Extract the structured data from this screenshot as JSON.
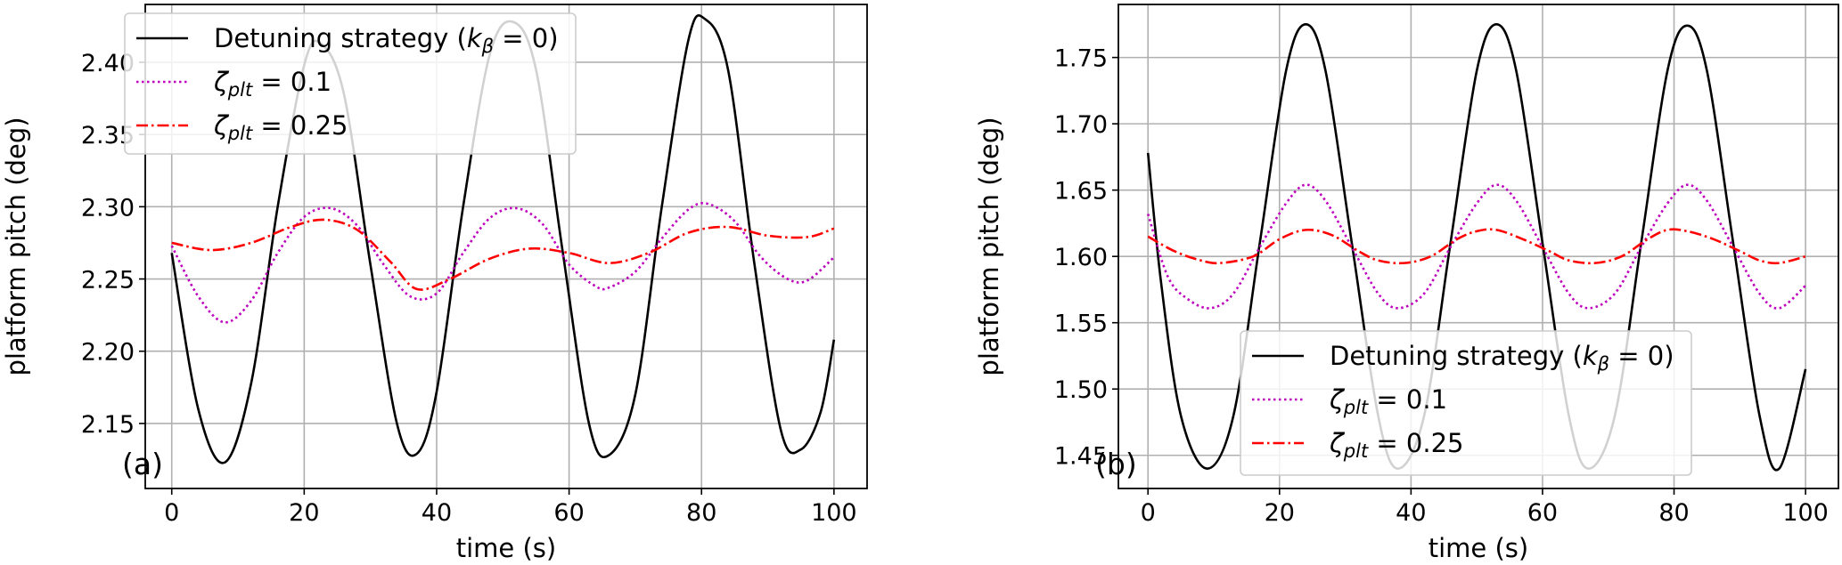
{
  "chart_data": [
    {
      "type": "line",
      "panel_label": "(a)",
      "xlabel": "time (s)",
      "ylabel": "platform pitch (deg)",
      "xlim": [
        -4,
        105
      ],
      "ylim": [
        2.105,
        2.44
      ],
      "xticks": [
        0,
        20,
        40,
        60,
        80,
        100
      ],
      "xtick_labels": [
        "0",
        "20",
        "40",
        "60",
        "80",
        "100"
      ],
      "yticks": [
        2.15,
        2.2,
        2.25,
        2.3,
        2.35,
        2.4
      ],
      "ytick_labels": [
        "2.15",
        "2.20",
        "2.25",
        "2.30",
        "2.35",
        "2.40"
      ],
      "grid": true,
      "legend_position": "top-left",
      "series": [
        {
          "name": "Detuning strategy (kβ = 0)",
          "color": "#000000",
          "style": "solid",
          "x": [
            0,
            4,
            8,
            12,
            16,
            20,
            22.5,
            26,
            30,
            34,
            37,
            40,
            44,
            48,
            51.5,
            55,
            59,
            63,
            66,
            70,
            74,
            78,
            80.5,
            84,
            88,
            92,
            95,
            98,
            100
          ],
          "y": [
            2.268,
            2.16,
            2.123,
            2.178,
            2.3,
            2.398,
            2.413,
            2.378,
            2.26,
            2.15,
            2.129,
            2.172,
            2.3,
            2.405,
            2.428,
            2.395,
            2.27,
            2.15,
            2.128,
            2.17,
            2.3,
            2.415,
            2.43,
            2.395,
            2.26,
            2.145,
            2.132,
            2.158,
            2.208
          ]
        },
        {
          "name": "ζplt = 0.1",
          "color": "#bf00bf",
          "style": "dotted",
          "x": [
            0,
            4,
            8,
            12,
            16,
            20,
            24,
            28,
            32,
            36,
            40,
            44,
            48,
            52,
            56,
            60,
            64,
            66,
            70,
            74,
            78,
            81,
            85,
            89,
            93,
            96,
            100
          ],
          "y": [
            2.273,
            2.238,
            2.22,
            2.235,
            2.268,
            2.293,
            2.299,
            2.287,
            2.26,
            2.238,
            2.24,
            2.268,
            2.292,
            2.299,
            2.288,
            2.26,
            2.245,
            2.244,
            2.255,
            2.278,
            2.298,
            2.302,
            2.29,
            2.265,
            2.25,
            2.249,
            2.265
          ]
        },
        {
          "name": "ζplt = 0.25",
          "color": "#ff0000",
          "style": "dashdot",
          "x": [
            0,
            6,
            12,
            18,
            23,
            28,
            33,
            37,
            42,
            48,
            54,
            60,
            66,
            72,
            78,
            84,
            90,
            96,
            100
          ],
          "y": [
            2.275,
            2.27,
            2.275,
            2.286,
            2.291,
            2.284,
            2.262,
            2.243,
            2.25,
            2.264,
            2.271,
            2.268,
            2.261,
            2.268,
            2.282,
            2.286,
            2.28,
            2.279,
            2.285
          ]
        }
      ]
    },
    {
      "type": "line",
      "panel_label": "(b)",
      "xlabel": "time (s)",
      "ylabel": "platform pitch (deg)",
      "xlim": [
        -4.5,
        105
      ],
      "ylim": [
        1.425,
        1.79
      ],
      "xticks": [
        0,
        20,
        40,
        60,
        80,
        100
      ],
      "xtick_labels": [
        "0",
        "20",
        "40",
        "60",
        "80",
        "100"
      ],
      "yticks": [
        1.45,
        1.5,
        1.55,
        1.6,
        1.65,
        1.7,
        1.75
      ],
      "ytick_labels": [
        "1.45",
        "1.50",
        "1.55",
        "1.60",
        "1.65",
        "1.70",
        "1.75"
      ],
      "grid": true,
      "legend_position": "bottom-right",
      "series": [
        {
          "name": "Detuning strategy (kβ = 0)",
          "color": "#000000",
          "style": "solid",
          "x": [
            0,
            2,
            5,
            9,
            13,
            17,
            21,
            24,
            27,
            31,
            35,
            38,
            42,
            46,
            50,
            53,
            56,
            60,
            64,
            67,
            71,
            75,
            79,
            82,
            85,
            89,
            93,
            96,
            100
          ],
          "y": [
            1.678,
            1.58,
            1.48,
            1.44,
            1.48,
            1.61,
            1.74,
            1.775,
            1.74,
            1.61,
            1.48,
            1.44,
            1.48,
            1.61,
            1.74,
            1.775,
            1.74,
            1.61,
            1.48,
            1.44,
            1.48,
            1.61,
            1.74,
            1.774,
            1.74,
            1.61,
            1.48,
            1.44,
            1.515
          ]
        },
        {
          "name": "ζplt = 0.1",
          "color": "#bf00bf",
          "style": "dotted",
          "x": [
            0,
            3,
            6,
            9.5,
            13,
            17,
            21,
            24,
            27,
            31,
            35,
            38,
            42,
            46,
            50,
            53,
            56,
            60,
            64,
            67,
            71,
            75,
            79,
            82,
            85,
            89,
            93,
            96,
            100
          ],
          "y": [
            1.632,
            1.585,
            1.568,
            1.561,
            1.572,
            1.607,
            1.64,
            1.654,
            1.642,
            1.607,
            1.572,
            1.561,
            1.572,
            1.607,
            1.64,
            1.654,
            1.642,
            1.607,
            1.572,
            1.561,
            1.572,
            1.607,
            1.64,
            1.654,
            1.642,
            1.607,
            1.572,
            1.561,
            1.578
          ]
        },
        {
          "name": "ζplt = 0.25",
          "color": "#ff0000",
          "style": "dashdot",
          "x": [
            0,
            4,
            8,
            11,
            16,
            20,
            24,
            28,
            32,
            35,
            39,
            43,
            47,
            50,
            53,
            57,
            61,
            64,
            68,
            72,
            76,
            79,
            82,
            86,
            90,
            93,
            96,
            100
          ],
          "y": [
            1.615,
            1.604,
            1.597,
            1.595,
            1.6,
            1.613,
            1.62,
            1.616,
            1.604,
            1.597,
            1.595,
            1.6,
            1.613,
            1.619,
            1.62,
            1.613,
            1.604,
            1.597,
            1.595,
            1.6,
            1.613,
            1.62,
            1.619,
            1.613,
            1.604,
            1.597,
            1.595,
            1.6
          ]
        }
      ]
    }
  ]
}
